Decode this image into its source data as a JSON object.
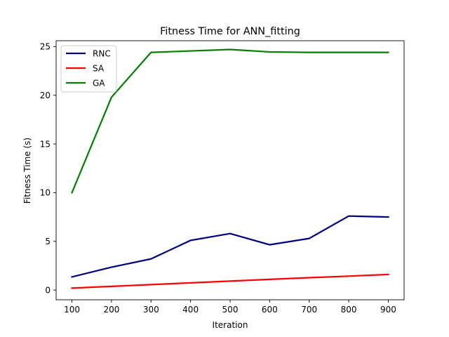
{
  "chart_data": {
    "type": "line",
    "title": "Fitness Time for ANN_fitting",
    "xlabel": "Iteration",
    "ylabel": "Fitness Time (s)",
    "x": [
      100,
      200,
      300,
      400,
      500,
      600,
      700,
      800,
      900
    ],
    "xlim": [
      60,
      940
    ],
    "ylim": [
      -1,
      25.6
    ],
    "xticks": [
      100,
      200,
      300,
      400,
      500,
      600,
      700,
      800,
      900
    ],
    "yticks": [
      0,
      5,
      10,
      15,
      20,
      25
    ],
    "grid": false,
    "legend_position": "top-left",
    "series": [
      {
        "name": "RNC",
        "color": "#000080",
        "values": [
          1.35,
          2.35,
          3.2,
          5.1,
          5.8,
          4.65,
          5.3,
          7.6,
          7.5
        ]
      },
      {
        "name": "SA",
        "color": "#ff0000",
        "values": [
          0.2,
          0.38,
          0.56,
          0.74,
          0.92,
          1.1,
          1.27,
          1.43,
          1.6
        ]
      },
      {
        "name": "GA",
        "color": "#008000",
        "values": [
          10.0,
          19.8,
          24.4,
          24.55,
          24.7,
          24.45,
          24.4,
          24.4,
          24.4
        ]
      }
    ]
  }
}
